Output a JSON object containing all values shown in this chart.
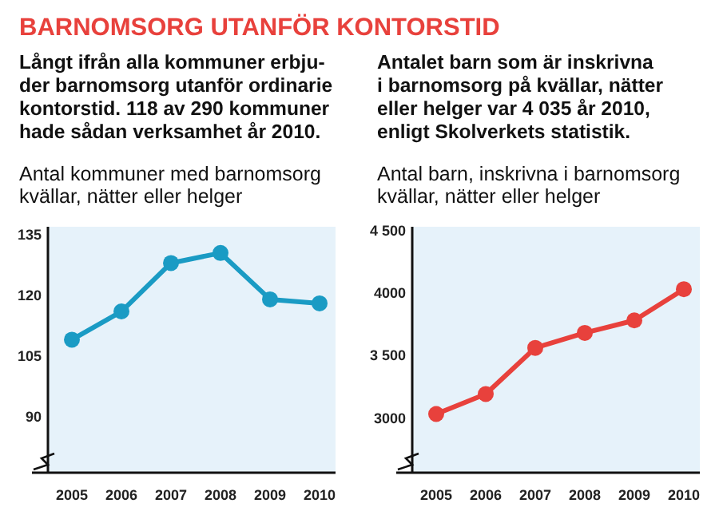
{
  "chart_data": [
    {
      "type": "line",
      "title": "BARNOMSORG UTANFÖR KONTORSTID",
      "subtitle": "Långt ifrån alla kommuner erbju-\nder barnomsorg utanför ordinarie\nkontorstid. 118 av 290 kommuner\nhade sådan verksamhet år 2010.",
      "ylabel": "Antal kommuner med barnomsorg\nkvällar, nätter eller helger",
      "categories": [
        "2005",
        "2006",
        "2007",
        "2008",
        "2009",
        "2010"
      ],
      "series": [
        {
          "color": "#1a9bc4",
          "values": [
            109,
            116,
            128,
            130.5,
            119,
            118
          ]
        }
      ],
      "ylim": [
        76,
        137
      ],
      "yticks": [
        90,
        105,
        120,
        135
      ],
      "marker": "circle",
      "line_style": "solid"
    },
    {
      "type": "line",
      "subtitle": "Antalet barn som är inskrivna\ni barnomsorg på kvällar, nätter\neller helger var 4 035 år 2010,\nenligt Skolverkets statistik.",
      "ylabel": "Antal barn, inskrivna i barnomsorg\nkvällar, nätter eller helger",
      "categories": [
        "2005",
        "2006",
        "2007",
        "2008",
        "2009",
        "2010"
      ],
      "series": [
        {
          "color": "#e8413c",
          "values": [
            3030,
            3190,
            3560,
            3680,
            3780,
            4030
          ]
        }
      ],
      "ylim": [
        2560,
        4530
      ],
      "yticks": [
        {
          "value": 3000,
          "label": "3000"
        },
        {
          "value": 3500,
          "label": "3 500"
        },
        {
          "value": 4000,
          "label": "4000"
        },
        {
          "value": 4500,
          "label": "4 500"
        }
      ],
      "marker": "circle",
      "line_style": "solid"
    }
  ]
}
